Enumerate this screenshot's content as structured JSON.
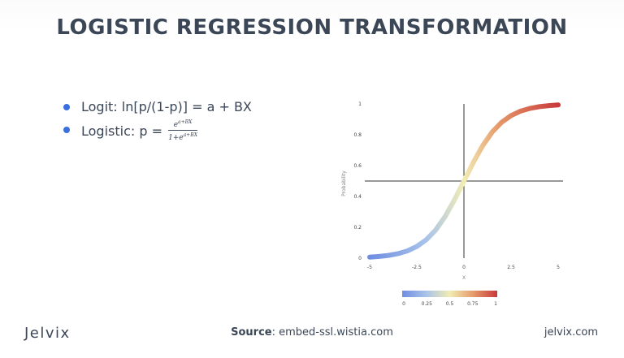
{
  "title": "LOGISTIC REGRESSION TRANSFORMATION",
  "bullets": {
    "logit": "Logit: ln[p/(1-p)] = a + BX",
    "logistic_prefix": "Logistic: p =",
    "fraction_numerator_base": "e",
    "fraction_numerator_exp": "a+BX",
    "fraction_denominator_base": "1+e",
    "fraction_denominator_exp": "a+BX"
  },
  "chart_data": {
    "type": "line",
    "title": "",
    "xlabel": "X",
    "ylabel": "Probability",
    "xlim": [
      -5,
      5
    ],
    "ylim": [
      0,
      1
    ],
    "x_ticks": [
      "-5",
      "-2.5",
      "0",
      "2.5",
      "5"
    ],
    "y_ticks": [
      "0",
      "0.2",
      "0.4",
      "0.6",
      "0.8",
      "1"
    ],
    "reference_lines": {
      "vertical_x": 0,
      "horizontal_y": 0.5
    },
    "series": [
      {
        "x": [
          -5,
          -4.5,
          -4,
          -3.5,
          -3,
          -2.5,
          -2,
          -1.5,
          -1,
          -0.5,
          0,
          0.5,
          1,
          1.5,
          2,
          2.5,
          3,
          3.5,
          4,
          4.5,
          5
        ],
        "y": [
          0.007,
          0.011,
          0.018,
          0.029,
          0.047,
          0.076,
          0.119,
          0.182,
          0.269,
          0.378,
          0.5,
          0.622,
          0.731,
          0.818,
          0.881,
          0.924,
          0.953,
          0.971,
          0.982,
          0.989,
          0.993
        ]
      }
    ],
    "colorbar": {
      "ticks": [
        "0",
        "0.25",
        "0.5",
        "0.75",
        "1"
      ],
      "colors": [
        "#6f8ee0",
        "#a8c3ea",
        "#f2ecb4",
        "#e59a6a",
        "#c8393b"
      ]
    },
    "grid": false
  },
  "footer": {
    "logo": "Jelvix",
    "source_label": "Source",
    "source_value": ": embed-ssl.wistia.com",
    "site": "jelvix.com"
  }
}
